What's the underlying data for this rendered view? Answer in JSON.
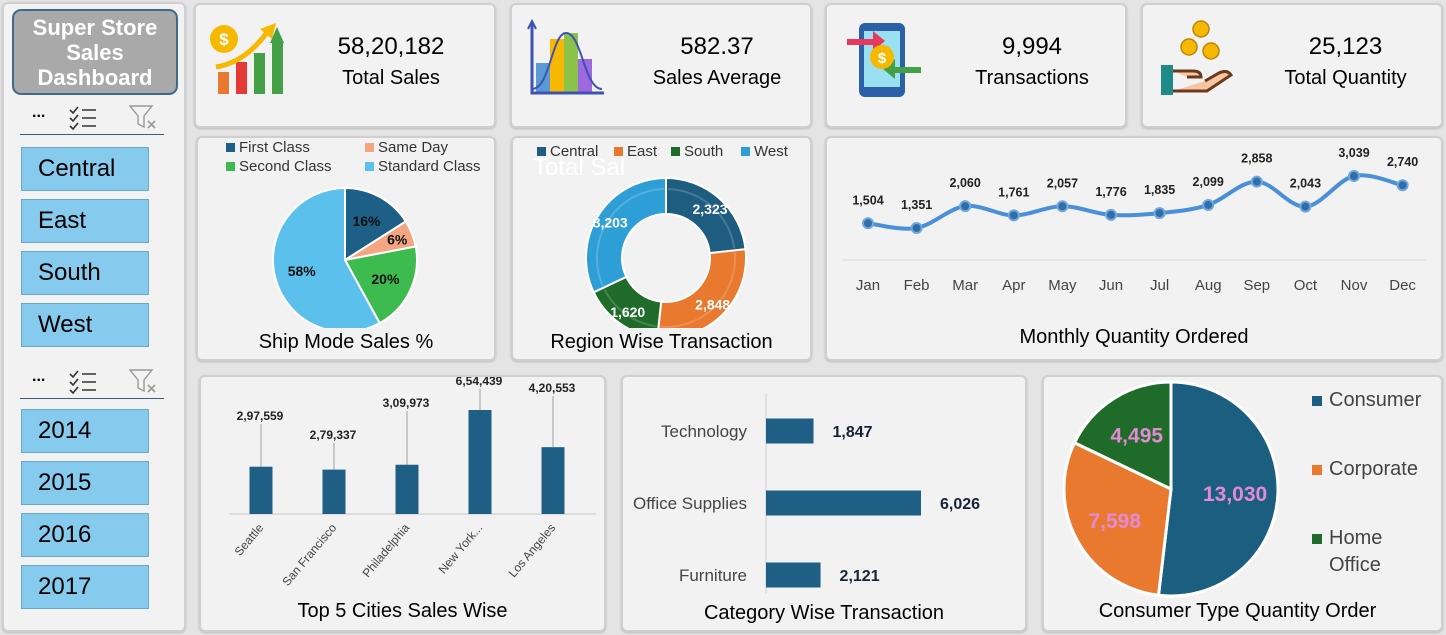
{
  "dashboard": {
    "title_lines": [
      "Super Store",
      "Sales",
      "Dashboard"
    ]
  },
  "slicers": [
    {
      "ellipsis": "...",
      "items": [
        "Central",
        "East",
        "South",
        "West"
      ]
    },
    {
      "ellipsis": "...",
      "items": [
        "2014",
        "2015",
        "2016",
        "2017"
      ]
    }
  ],
  "kpis": [
    {
      "value": "58,20,182",
      "label": "Total Sales",
      "icon": "sales-growth-icon"
    },
    {
      "value": "582.37",
      "label": "Sales Average",
      "icon": "distribution-chart-icon"
    },
    {
      "value": "9,994",
      "label": "Transactions",
      "icon": "mobile-payment-icon"
    },
    {
      "value": "25,123",
      "label": "Total Quantity",
      "icon": "hand-coins-icon"
    }
  ],
  "colors": {
    "navy": "#1f5a7a",
    "orange": "#e8792e",
    "green": "#1e6b2a",
    "lightblue": "#5bc0ec",
    "line": "#4a90d9",
    "bar": "#1f5f85"
  },
  "chart_data": [
    {
      "type": "pie",
      "title": "Ship Mode Sales %",
      "categories": [
        "First Class",
        "Same Day",
        "Second Class",
        "Standard Class"
      ],
      "values": [
        16,
        6,
        20,
        58
      ],
      "data_labels": [
        "16%",
        "6%",
        "20%",
        "58%"
      ],
      "colors": [
        "#1d5f86",
        "#f4a582",
        "#3dbb4f",
        "#5bc0ec"
      ],
      "legend_position": "top"
    },
    {
      "type": "pie",
      "subtype": "doughnut",
      "title": "Region Wise Transaction",
      "ghost_text": "Total Sal",
      "categories": [
        "Central",
        "East",
        "South",
        "West"
      ],
      "values": [
        2323,
        2848,
        1620,
        3203
      ],
      "data_labels": [
        "2,323",
        "2,848",
        "1,620",
        "3,203"
      ],
      "colors": [
        "#1e5c80",
        "#e8792e",
        "#1e6b2a",
        "#2e9fd6"
      ],
      "legend_position": "top"
    },
    {
      "type": "line",
      "title": "Monthly Quantity Ordered",
      "categories": [
        "Jan",
        "Feb",
        "Mar",
        "Apr",
        "May",
        "Jun",
        "Jul",
        "Aug",
        "Sep",
        "Oct",
        "Nov",
        "Dec"
      ],
      "values": [
        1504,
        1351,
        2060,
        1761,
        2057,
        1776,
        1835,
        2099,
        2858,
        2043,
        3039,
        2740
      ],
      "data_labels": [
        "1,504",
        "1,351",
        "2,060",
        "1,761",
        "2,057",
        "1,776",
        "1,835",
        "2,099",
        "2,858",
        "2,043",
        "3,039",
        "2,740"
      ]
    },
    {
      "type": "bar",
      "title": "Top 5 Cities Sales Wise",
      "categories": [
        "Seattle",
        "San Francisco",
        "Philadelphia",
        "New York...",
        "Los Angeles"
      ],
      "values": [
        297559,
        279337,
        309973,
        654439,
        420553
      ],
      "data_labels": [
        "2,97,559",
        "2,79,337",
        "3,09,973",
        "6,54,439",
        "4,20,553"
      ]
    },
    {
      "type": "bar",
      "orientation": "horizontal",
      "title": "Category Wise Transaction",
      "categories": [
        "Technology",
        "Office Supplies",
        "Furniture"
      ],
      "values": [
        1847,
        6026,
        2121
      ],
      "data_labels": [
        "1,847",
        "6,026",
        "2,121"
      ]
    },
    {
      "type": "pie",
      "title": "Consumer Type Quantity Order",
      "categories": [
        "Consumer",
        "Corporate",
        "Home Office"
      ],
      "values": [
        13030,
        7598,
        4495
      ],
      "data_labels": [
        "13,030",
        "7,598",
        "4,495"
      ],
      "colors": [
        "#1b5e80",
        "#e8792e",
        "#1e6b2a"
      ],
      "label_color": "#e38ad4",
      "legend_position": "right"
    }
  ]
}
